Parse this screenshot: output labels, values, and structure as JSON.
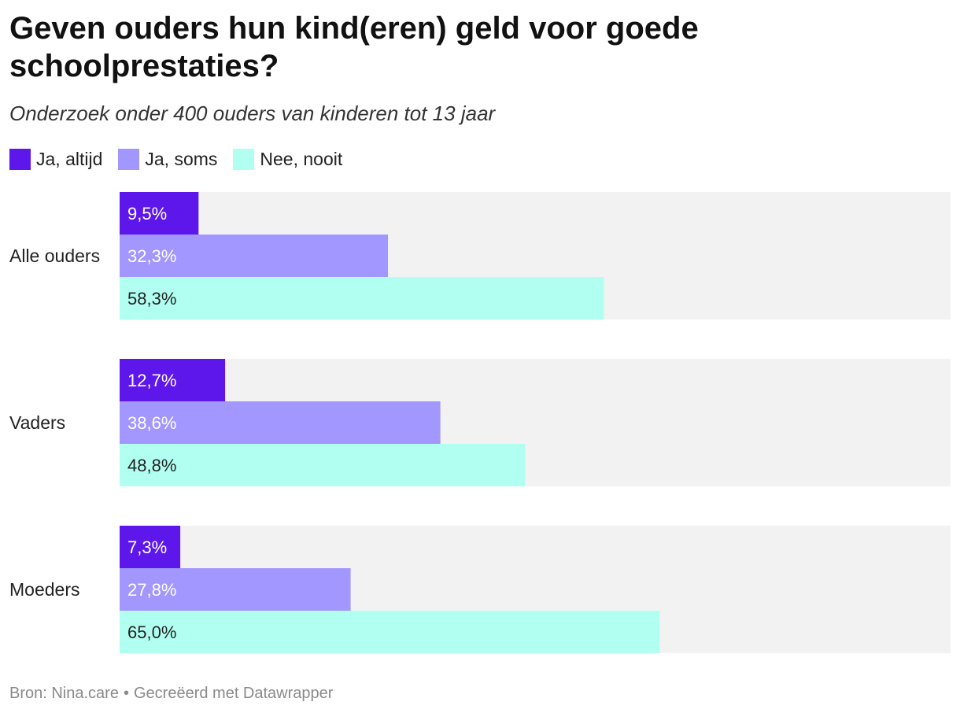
{
  "title": "Geven ouders hun kind(eren) geld voor goede schoolprestaties?",
  "subtitle": "Onderzoek onder 400 ouders van kinderen tot 13 jaar",
  "footer": {
    "source": "Bron: Nina.care",
    "separator": "•",
    "credit": "Gecreëerd met Datawrapper"
  },
  "chart_data": {
    "type": "bar",
    "orientation": "horizontal",
    "categories": [
      "Alle ouders",
      "Vaders",
      "Moeders"
    ],
    "series": [
      {
        "name": "Ja, altijd",
        "color": "#5e17eb",
        "values": [
          9.5,
          12.7,
          7.3
        ],
        "labels": [
          "9,5%",
          "12,7%",
          "7,3%"
        ],
        "label_color": "#ffffff"
      },
      {
        "name": "Ja, soms",
        "color": "#a197ff",
        "values": [
          32.3,
          38.6,
          27.8
        ],
        "labels": [
          "32,3%",
          "38,6%",
          "27,8%"
        ],
        "label_color": "#ffffff"
      },
      {
        "name": "Nee, nooit",
        "color": "#b0fff1",
        "values": [
          58.3,
          48.8,
          65.0
        ],
        "labels": [
          "58,3%",
          "48,8%",
          "65,0%"
        ],
        "label_color": "#222222"
      }
    ],
    "xlim": [
      0,
      100
    ],
    "background_track_color": "#f2f2f2",
    "legend_position": "top-left"
  }
}
